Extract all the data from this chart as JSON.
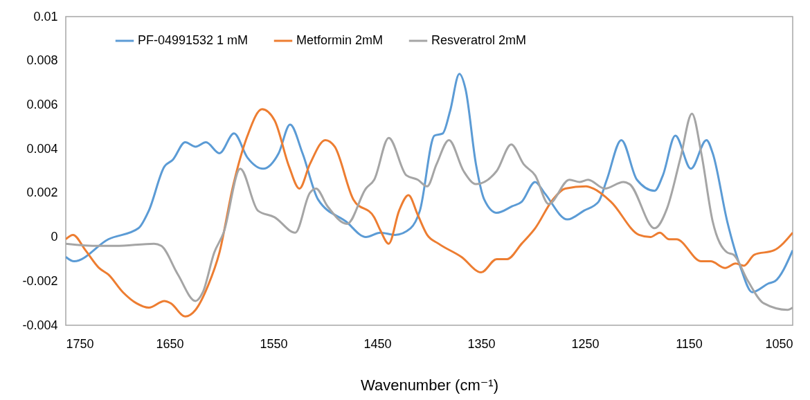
{
  "chart_data": {
    "type": "line",
    "xlabel": "Wavenumber (cm⁻¹)",
    "xlim": [
      1750,
      1050
    ],
    "xticks": [
      1750,
      1650,
      1550,
      1450,
      1350,
      1250,
      1150,
      1050
    ],
    "ylim": [
      -0.004,
      0.01
    ],
    "yticks": [
      -0.004,
      -0.002,
      0,
      0.002,
      0.004,
      0.006,
      0.008,
      0.01
    ],
    "grid": false,
    "legend": "top",
    "series": [
      {
        "name": "PF-04991532 1 mM",
        "color": "#5b9bd5",
        "x": [
          1750,
          1742,
          1709,
          1680,
          1670,
          1655,
          1647,
          1635,
          1625,
          1615,
          1602,
          1588,
          1575,
          1560,
          1545,
          1534,
          1522,
          1507,
          1480,
          1461,
          1447,
          1433,
          1418,
          1409,
          1395,
          1387,
          1380,
          1371,
          1365,
          1355,
          1347,
          1335,
          1320,
          1311,
          1298,
          1289,
          1267,
          1251,
          1237,
          1229,
          1215,
          1200,
          1183,
          1175,
          1163,
          1148,
          1133,
          1127,
          1113,
          1100,
          1089,
          1073,
          1067,
          1050
        ],
        "values": [
          -0.0009,
          -0.0011,
          -0.0001,
          0.0004,
          0.0012,
          0.0032,
          0.0035,
          0.0043,
          0.0041,
          0.0043,
          0.0038,
          0.0047,
          0.0036,
          0.0031,
          0.0038,
          0.0051,
          0.0038,
          0.0017,
          0.0007,
          0.0,
          0.0002,
          0.0001,
          0.0004,
          0.0012,
          0.0046,
          0.0047,
          0.0057,
          0.0074,
          0.0067,
          0.0033,
          0.0017,
          0.0011,
          0.0014,
          0.0016,
          0.0025,
          0.002,
          0.0008,
          0.0012,
          0.0016,
          0.0026,
          0.0044,
          0.0026,
          0.0021,
          0.0028,
          0.0046,
          0.0031,
          0.0044,
          0.0038,
          0.0007,
          -0.0014,
          -0.0025,
          -0.0021,
          -0.002,
          -0.0006
        ]
      },
      {
        "name": "Metformin 2mM",
        "color": "#ed7d31",
        "x": [
          1750,
          1743,
          1731,
          1718,
          1709,
          1695,
          1682,
          1670,
          1655,
          1649,
          1635,
          1625,
          1613,
          1602,
          1589,
          1575,
          1561,
          1549,
          1535,
          1525,
          1515,
          1500,
          1491,
          1473,
          1453,
          1447,
          1439,
          1429,
          1420,
          1411,
          1402,
          1391,
          1369,
          1350,
          1335,
          1325,
          1311,
          1298,
          1281,
          1269,
          1249,
          1242,
          1225,
          1198,
          1187,
          1178,
          1169,
          1162,
          1138,
          1129,
          1115,
          1105,
          1097,
          1087,
          1068,
          1050
        ],
        "values": [
          -0.0001,
          0.0001,
          -0.0006,
          -0.0014,
          -0.0017,
          -0.0025,
          -0.003,
          -0.0032,
          -0.0029,
          -0.003,
          -0.0036,
          -0.0033,
          -0.0022,
          -0.0007,
          0.0023,
          0.0046,
          0.0058,
          0.0053,
          0.0032,
          0.0022,
          0.0033,
          0.0044,
          0.0041,
          0.0017,
          0.0009,
          0.0003,
          -0.0003,
          0.0012,
          0.0019,
          0.001,
          0.0001,
          -0.0003,
          -0.0009,
          -0.0016,
          -0.001,
          -0.001,
          -0.0003,
          0.0004,
          0.0017,
          0.0022,
          0.0023,
          0.0022,
          0.0016,
          0.0001,
          0.0,
          0.0002,
          -0.0001,
          -0.0001,
          -0.0011,
          -0.0011,
          -0.0014,
          -0.0012,
          -0.0013,
          -0.0008,
          -0.0006,
          0.0002
        ]
      },
      {
        "name": "Resveratrol 2mM",
        "color": "#a5a5a5",
        "x": [
          1750,
          1718,
          1702,
          1665,
          1658,
          1642,
          1625,
          1618,
          1607,
          1598,
          1582,
          1565,
          1549,
          1529,
          1515,
          1509,
          1498,
          1479,
          1461,
          1453,
          1439,
          1422,
          1411,
          1402,
          1393,
          1381,
          1367,
          1355,
          1335,
          1321,
          1309,
          1298,
          1285,
          1265,
          1255,
          1247,
          1231,
          1213,
          1207,
          1183,
          1171,
          1158,
          1147,
          1138,
          1127,
          1113,
          1107,
          1093,
          1078,
          1055,
          1050
        ],
        "values": [
          -0.0003,
          -0.0004,
          -0.0004,
          -0.0003,
          -0.0004,
          -0.0017,
          -0.0029,
          -0.0025,
          -0.0007,
          0.0002,
          0.0031,
          0.0012,
          0.0009,
          0.0002,
          0.002,
          0.0022,
          0.0014,
          0.0006,
          0.0022,
          0.0026,
          0.0045,
          0.0028,
          0.0026,
          0.0023,
          0.0033,
          0.0044,
          0.003,
          0.0024,
          0.003,
          0.0042,
          0.0033,
          0.0028,
          0.0015,
          0.0026,
          0.0025,
          0.0026,
          0.0022,
          0.0025,
          0.0024,
          0.0004,
          0.0013,
          0.0036,
          0.0056,
          0.0038,
          0.0007,
          -0.0007,
          -0.0008,
          -0.002,
          -0.003,
          -0.0033,
          -0.0032
        ]
      }
    ]
  }
}
